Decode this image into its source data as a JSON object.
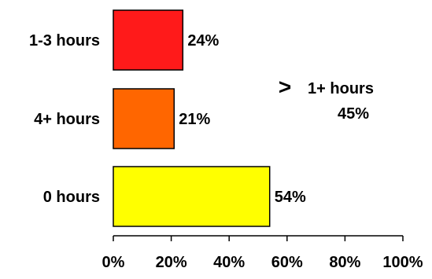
{
  "chart_data": {
    "type": "bar",
    "orientation": "horizontal",
    "categories": [
      "1-3 hours",
      "4+ hours",
      "0 hours"
    ],
    "values": [
      24,
      21,
      54
    ],
    "data_labels": [
      "24%",
      "21%",
      "54%"
    ],
    "colors": [
      "#ff1a1a",
      "#ff6600",
      "#ffff00"
    ],
    "bar_outline_color": "#000000",
    "xlim": [
      0,
      100
    ],
    "x_ticks": [
      0,
      20,
      40,
      60,
      80,
      100
    ],
    "x_tick_labels": [
      "0%",
      "20%",
      "40%",
      "60%",
      "80%",
      "100%"
    ],
    "grid": false,
    "legend": "none",
    "annotation": {
      "symbol": ">",
      "line1": "1+ hours",
      "line2": "45%"
    }
  }
}
